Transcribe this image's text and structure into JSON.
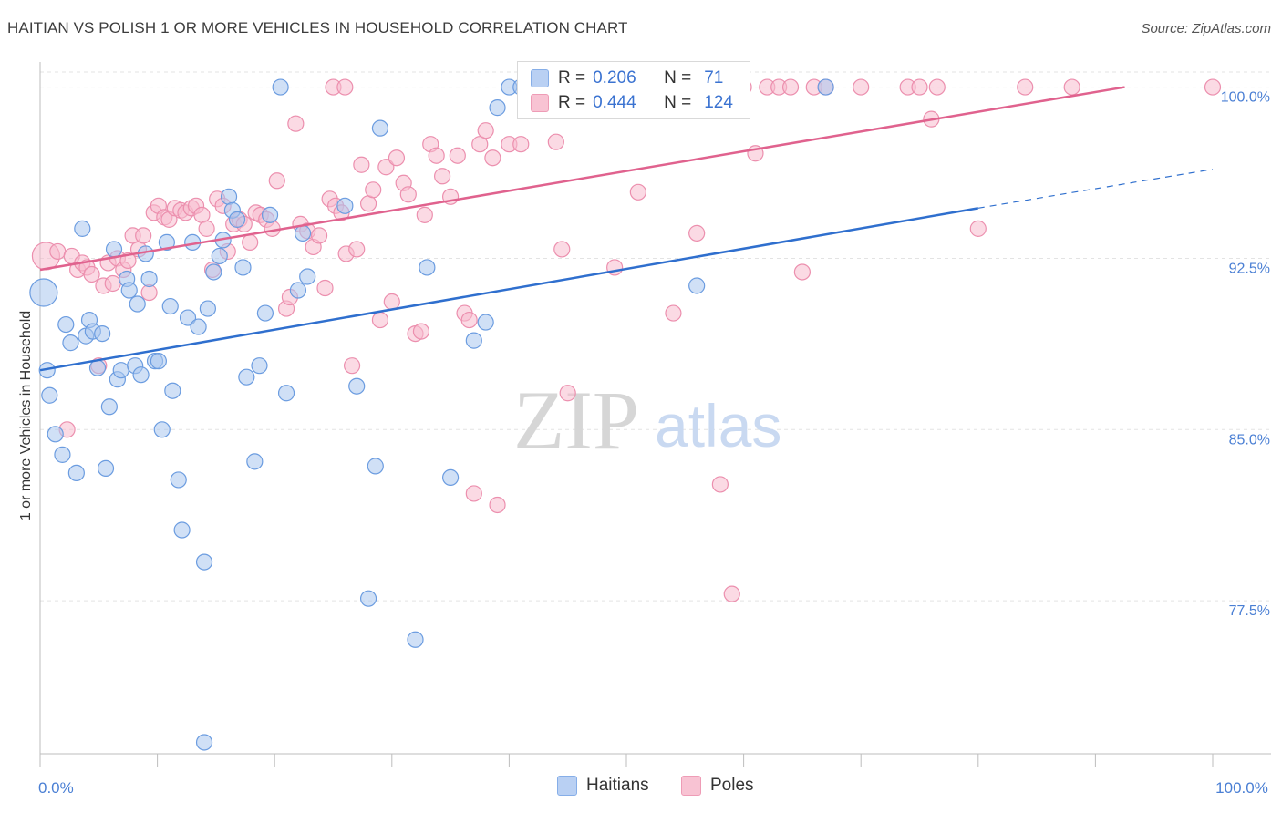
{
  "header": {
    "title": "HAITIAN VS POLISH 1 OR MORE VEHICLES IN HOUSEHOLD CORRELATION CHART",
    "source": "Source: ZipAtlas.com"
  },
  "legend": {
    "haitians": {
      "r_label": "R =",
      "r_value": "0.206",
      "n_label": "N =",
      "n_value": "71"
    },
    "poles": {
      "r_label": "R =",
      "r_value": "0.444",
      "n_label": "N =",
      "n_value": "124"
    }
  },
  "bottom_legend": {
    "haitians": "Haitians",
    "poles": "Poles"
  },
  "watermark": {
    "zip": "ZIP",
    "atlas": "atlas"
  },
  "colors": {
    "haitians_fill": "#a9c6ef",
    "haitians_stroke": "#6b9ce0",
    "haitians_line": "#2f6fce",
    "poles_fill": "#f7bccd",
    "poles_stroke": "#ec8fae",
    "poles_line": "#e0628e",
    "grid": "#e3e3e3",
    "tick_text": "#4a7fd4"
  },
  "chart_data": {
    "type": "scatter",
    "title": "HAITIAN VS POLISH 1 OR MORE VEHICLES IN HOUSEHOLD CORRELATION CHART",
    "ylabel": "1 or more Vehicles in Household",
    "xlabel": "",
    "xlim": [
      0,
      100
    ],
    "ylim": [
      70.8,
      101.5
    ],
    "x_tick_labels": [
      {
        "value": 0,
        "label": "0.0%"
      },
      {
        "value": 100,
        "label": "100.0%"
      }
    ],
    "y_tick_labels": [
      {
        "value": 100,
        "label": "100.0%"
      },
      {
        "value": 92.5,
        "label": "92.5%"
      },
      {
        "value": 85,
        "label": "85.0%"
      },
      {
        "value": 77.5,
        "label": "77.5%"
      }
    ],
    "grid": true,
    "legend_position": "top-center",
    "series": [
      {
        "name": "Haitians",
        "trend": {
          "x0": 0,
          "y0": 87.6,
          "x1": 80,
          "y1": 94.7,
          "dashed_to_x": 100,
          "dashed_to_y": 96.4
        },
        "points": [
          [
            0.3,
            91.0,
            "L"
          ],
          [
            0.6,
            87.6
          ],
          [
            0.8,
            86.5
          ],
          [
            1.3,
            84.8
          ],
          [
            1.9,
            83.9
          ],
          [
            2.2,
            89.6
          ],
          [
            2.6,
            88.8
          ],
          [
            3.1,
            83.1
          ],
          [
            3.6,
            93.8
          ],
          [
            3.9,
            89.1
          ],
          [
            4.2,
            89.8
          ],
          [
            4.5,
            89.3
          ],
          [
            4.9,
            87.7
          ],
          [
            5.3,
            89.2
          ],
          [
            5.6,
            83.3
          ],
          [
            5.9,
            86.0
          ],
          [
            6.3,
            92.9
          ],
          [
            6.6,
            87.2
          ],
          [
            6.9,
            87.6
          ],
          [
            7.4,
            91.6
          ],
          [
            7.6,
            91.1
          ],
          [
            8.1,
            87.8
          ],
          [
            8.3,
            90.5
          ],
          [
            8.6,
            87.4
          ],
          [
            9.0,
            92.7
          ],
          [
            9.3,
            91.6
          ],
          [
            9.8,
            88.0
          ],
          [
            10.1,
            88.0
          ],
          [
            10.4,
            85.0
          ],
          [
            10.8,
            93.2
          ],
          [
            11.1,
            90.4
          ],
          [
            11.3,
            86.7
          ],
          [
            11.8,
            82.8
          ],
          [
            12.1,
            80.6
          ],
          [
            12.6,
            89.9
          ],
          [
            13.0,
            93.2
          ],
          [
            13.5,
            89.5
          ],
          [
            14.0,
            79.2
          ],
          [
            14.3,
            90.3
          ],
          [
            14.8,
            91.9
          ],
          [
            15.3,
            92.6
          ],
          [
            15.6,
            93.3
          ],
          [
            16.1,
            95.2
          ],
          [
            16.4,
            94.6
          ],
          [
            16.8,
            94.2
          ],
          [
            17.3,
            92.1
          ],
          [
            17.6,
            87.3
          ],
          [
            18.3,
            83.6
          ],
          [
            18.7,
            87.8
          ],
          [
            19.2,
            90.1
          ],
          [
            19.6,
            94.4
          ],
          [
            20.5,
            100.0
          ],
          [
            21.0,
            86.6
          ],
          [
            22.0,
            91.1
          ],
          [
            22.4,
            93.6
          ],
          [
            22.8,
            91.7
          ],
          [
            26.0,
            94.8
          ],
          [
            27.0,
            86.9
          ],
          [
            28.0,
            77.6
          ],
          [
            28.6,
            83.4
          ],
          [
            29.0,
            98.2
          ],
          [
            32.0,
            75.8
          ],
          [
            33.0,
            92.1
          ],
          [
            35.0,
            82.9
          ],
          [
            37.0,
            88.9
          ],
          [
            38.0,
            89.7
          ],
          [
            39.0,
            99.1
          ],
          [
            40.0,
            100.0
          ],
          [
            41.0,
            100.0
          ],
          [
            56.0,
            91.3
          ],
          [
            67.0,
            100.0
          ],
          [
            14.0,
            71.3
          ]
        ]
      },
      {
        "name": "Poles",
        "trend": {
          "x0": 0,
          "y0": 92.0,
          "x1": 92.5,
          "y1": 100.0
        },
        "points": [
          [
            0.5,
            92.6,
            "L"
          ],
          [
            1.5,
            92.8
          ],
          [
            2.3,
            85.0
          ],
          [
            2.7,
            92.6
          ],
          [
            3.2,
            92.0
          ],
          [
            3.6,
            92.3
          ],
          [
            4.0,
            92.1
          ],
          [
            4.4,
            91.8
          ],
          [
            5.0,
            87.8
          ],
          [
            5.4,
            91.3
          ],
          [
            5.8,
            92.3
          ],
          [
            6.2,
            91.4
          ],
          [
            6.6,
            92.5
          ],
          [
            7.1,
            92.0
          ],
          [
            7.5,
            92.4
          ],
          [
            7.9,
            93.5
          ],
          [
            8.4,
            92.9
          ],
          [
            8.8,
            93.5
          ],
          [
            9.3,
            91.0
          ],
          [
            9.7,
            94.5
          ],
          [
            10.1,
            94.8
          ],
          [
            10.6,
            94.3
          ],
          [
            11.0,
            94.2
          ],
          [
            11.5,
            94.7
          ],
          [
            12.0,
            94.6
          ],
          [
            12.4,
            94.5
          ],
          [
            12.9,
            94.7
          ],
          [
            13.3,
            94.8
          ],
          [
            13.8,
            94.4
          ],
          [
            14.2,
            93.8
          ],
          [
            14.7,
            92.0
          ],
          [
            15.1,
            95.1
          ],
          [
            15.6,
            94.8
          ],
          [
            16.0,
            92.8
          ],
          [
            16.5,
            94.0
          ],
          [
            17.0,
            94.2
          ],
          [
            17.4,
            94.0
          ],
          [
            17.9,
            93.2
          ],
          [
            18.4,
            94.5
          ],
          [
            18.8,
            94.4
          ],
          [
            19.3,
            94.2
          ],
          [
            19.8,
            93.8
          ],
          [
            20.2,
            95.9
          ],
          [
            21.0,
            90.3
          ],
          [
            21.3,
            90.8
          ],
          [
            21.8,
            98.4
          ],
          [
            22.2,
            94.0
          ],
          [
            22.8,
            93.7
          ],
          [
            23.3,
            93.0
          ],
          [
            23.8,
            93.5
          ],
          [
            24.3,
            91.2
          ],
          [
            24.7,
            95.1
          ],
          [
            25.2,
            94.8
          ],
          [
            25.7,
            94.5
          ],
          [
            26.1,
            92.7
          ],
          [
            26.6,
            87.8
          ],
          [
            27.0,
            92.9
          ],
          [
            27.4,
            96.6
          ],
          [
            28.0,
            94.9
          ],
          [
            28.4,
            95.5
          ],
          [
            29.0,
            89.8
          ],
          [
            29.5,
            96.5
          ],
          [
            30.0,
            90.6
          ],
          [
            30.4,
            96.9
          ],
          [
            31.0,
            95.8
          ],
          [
            31.4,
            95.3
          ],
          [
            32.0,
            89.2
          ],
          [
            32.5,
            89.3
          ],
          [
            32.8,
            94.4
          ],
          [
            33.3,
            97.5
          ],
          [
            33.8,
            97.0
          ],
          [
            34.3,
            96.1
          ],
          [
            35.0,
            95.2
          ],
          [
            35.6,
            97.0
          ],
          [
            36.2,
            90.1
          ],
          [
            36.6,
            89.8
          ],
          [
            37.0,
            82.2
          ],
          [
            37.5,
            97.5
          ],
          [
            38.0,
            98.1
          ],
          [
            38.6,
            96.9
          ],
          [
            39.0,
            81.7
          ],
          [
            40.0,
            97.5
          ],
          [
            41.0,
            97.5
          ],
          [
            42.0,
            100.0
          ],
          [
            43.0,
            100.0
          ],
          [
            44.0,
            97.6
          ],
          [
            44.5,
            92.9
          ],
          [
            45.0,
            86.6
          ],
          [
            46.0,
            100.0
          ],
          [
            47.0,
            100.0
          ],
          [
            48.0,
            100.0
          ],
          [
            49.0,
            92.1
          ],
          [
            50.0,
            100.0
          ],
          [
            51.0,
            95.4
          ],
          [
            52.0,
            100.0
          ],
          [
            53.0,
            100.0
          ],
          [
            54.0,
            90.1
          ],
          [
            55.0,
            100.0
          ],
          [
            56.0,
            93.6
          ],
          [
            57.0,
            100.0
          ],
          [
            58.0,
            82.6
          ],
          [
            59.0,
            100.0
          ],
          [
            60.0,
            100.0
          ],
          [
            61.0,
            97.1
          ],
          [
            62.0,
            100.0
          ],
          [
            63.0,
            100.0
          ],
          [
            64.0,
            100.0
          ],
          [
            65.0,
            91.9
          ],
          [
            66.0,
            100.0
          ],
          [
            67.0,
            100.0
          ],
          [
            70.0,
            100.0
          ],
          [
            74.0,
            100.0
          ],
          [
            75.0,
            100.0
          ],
          [
            76.0,
            98.6
          ],
          [
            76.5,
            100.0
          ],
          [
            80.0,
            93.8
          ],
          [
            84.0,
            100.0
          ],
          [
            88.0,
            100.0
          ],
          [
            100.0,
            100.0
          ],
          [
            59.0,
            77.8
          ],
          [
            25.0,
            100.0
          ],
          [
            26.0,
            100.0
          ]
        ]
      }
    ]
  }
}
